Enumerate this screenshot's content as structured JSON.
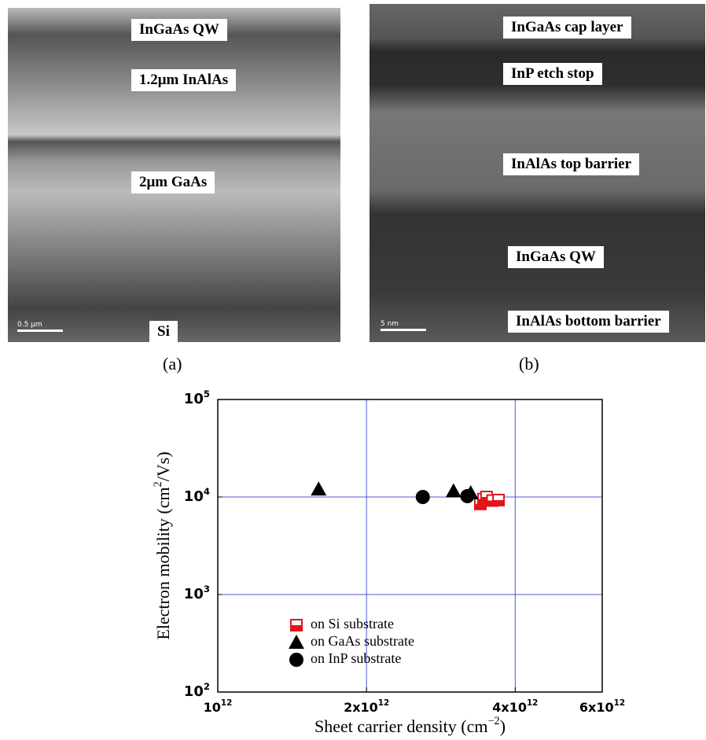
{
  "panels": [
    {
      "labels": [
        "InGaAs QW",
        "1.2μm InAlAs",
        "2μm GaAs",
        "Si"
      ],
      "scale_bar": "0.5 μm",
      "caption": "(a)"
    },
    {
      "labels": [
        "InGaAs cap layer",
        "InP etch stop",
        "InAlAs top barrier",
        "InGaAs QW",
        "InAlAs bottom barrier"
      ],
      "scale_bar": "5 nm",
      "caption": "(b)"
    }
  ],
  "chart_data": {
    "type": "scatter",
    "x_label": "Sheet carrier density (cm^-2)",
    "y_label": "Electron mobility (cm^2/Vs)",
    "xlim": [
      1000000000000.0,
      6000000000000.0
    ],
    "ylim": [
      100,
      100000
    ],
    "x_scale": "log",
    "y_scale": "log",
    "grid": true,
    "legend": "lower left",
    "xticks": [
      {
        "value": 1000000000000.0,
        "label": "10^12"
      },
      {
        "value": 2000000000000.0,
        "label": "2x10^12"
      },
      {
        "value": 4000000000000.0,
        "label": "4x10^12"
      },
      {
        "value": 6000000000000.0,
        "label": "6x10^12"
      }
    ],
    "yticks": [
      {
        "value": 100,
        "label": "10^2"
      },
      {
        "value": 1000,
        "label": "10^3"
      },
      {
        "value": 10000,
        "label": "10^4"
      },
      {
        "value": 100000,
        "label": "10^5"
      }
    ],
    "series": [
      {
        "name": "on Si substrate",
        "color": "#e3141b",
        "marker": "square",
        "x": [
          3400000000000.0,
          3450000000000.0,
          3500000000000.0,
          3600000000000.0,
          3700000000000.0
        ],
        "values": [
          8500,
          9500,
          10000,
          9200,
          9300
        ]
      },
      {
        "name": "on GaAs substrate",
        "color": "#000000",
        "marker": "triangle",
        "x": [
          1600000000000.0,
          3000000000000.0,
          3250000000000.0
        ],
        "values": [
          12000,
          11500,
          11000
        ]
      },
      {
        "name": "on InP substrate",
        "color": "#000000",
        "marker": "circle",
        "x": [
          2600000000000.0,
          3200000000000.0
        ],
        "values": [
          10000,
          10200
        ]
      }
    ]
  }
}
